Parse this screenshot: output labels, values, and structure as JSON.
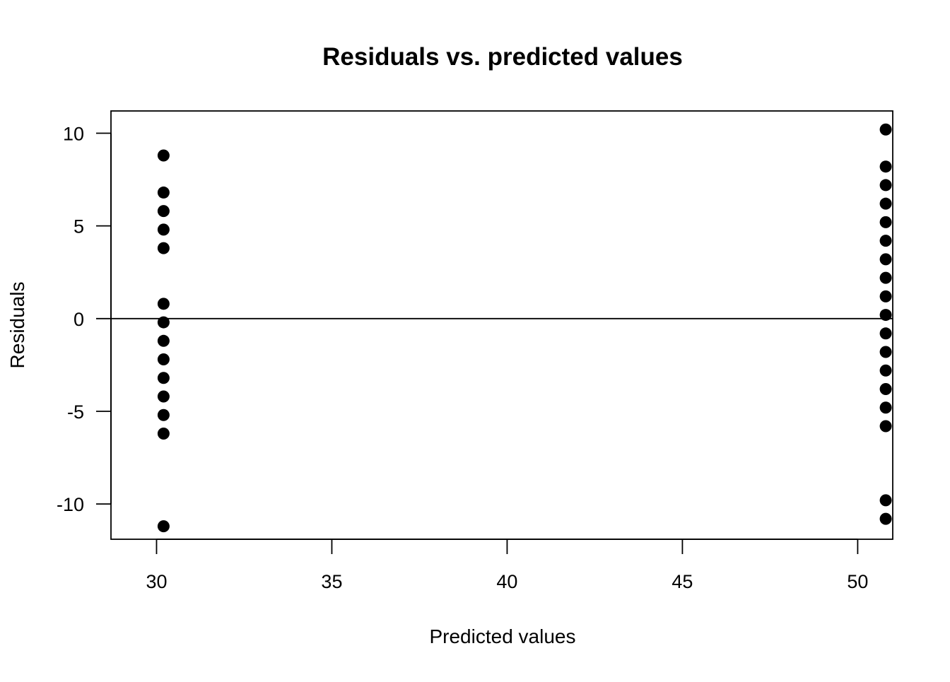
{
  "chart_data": {
    "type": "scatter",
    "title": "Residuals vs. predicted values",
    "xlabel": "Predicted values",
    "ylabel": "Residuals",
    "xlim": [
      28.7,
      51.0
    ],
    "ylim": [
      -11.9,
      11.2
    ],
    "x_ticks": [
      30,
      35,
      40,
      45,
      50
    ],
    "y_ticks": [
      -10,
      -5,
      0,
      5,
      10
    ],
    "x_tick_labels": [
      "30",
      "35",
      "40",
      "45",
      "50"
    ],
    "y_tick_labels": [
      "-10",
      "-5",
      "0",
      "5",
      "10"
    ],
    "reference_line_y": 0,
    "grid": false,
    "legend": "none",
    "point_color": "#000000",
    "series": [
      {
        "x": [
          30.2,
          30.2,
          30.2,
          30.2,
          30.2,
          30.2,
          30.2,
          30.2,
          30.2,
          30.2,
          30.2,
          30.2,
          30.2,
          30.2
        ],
        "y": [
          8.8,
          6.8,
          5.8,
          4.8,
          3.8,
          0.8,
          -0.2,
          -1.2,
          -2.2,
          -3.2,
          -4.2,
          -5.2,
          -6.2,
          -11.2
        ]
      },
      {
        "x": [
          50.8,
          50.8,
          50.8,
          50.8,
          50.8,
          50.8,
          50.8,
          50.8,
          50.8,
          50.8,
          50.8,
          50.8,
          50.8,
          50.8,
          50.8,
          50.8,
          50.8,
          50.8
        ],
        "y": [
          10.2,
          8.2,
          7.2,
          6.2,
          5.2,
          4.2,
          3.2,
          2.2,
          1.2,
          0.2,
          -0.8,
          -1.8,
          -2.8,
          -3.8,
          -4.8,
          -5.8,
          -9.8,
          -10.8
        ]
      }
    ]
  }
}
